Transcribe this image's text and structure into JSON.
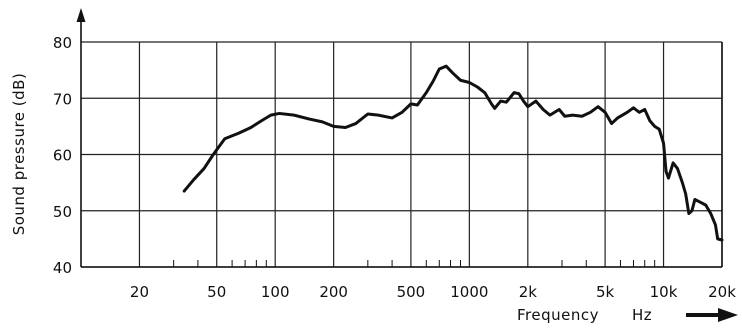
{
  "chart_data": {
    "type": "line",
    "title": "",
    "xlabel": "Frequency",
    "xunit": "Hz",
    "ylabel": "Sound pressure (dB)",
    "xscale": "log",
    "xlim": [
      10,
      20000
    ],
    "ylim": [
      40,
      80
    ],
    "xticks": [
      {
        "value": 20,
        "label": "20"
      },
      {
        "value": 50,
        "label": "50"
      },
      {
        "value": 100,
        "label": "100"
      },
      {
        "value": 200,
        "label": "200"
      },
      {
        "value": 500,
        "label": "500"
      },
      {
        "value": 1000,
        "label": "1000"
      },
      {
        "value": 2000,
        "label": "2k"
      },
      {
        "value": 5000,
        "label": "5k"
      },
      {
        "value": 10000,
        "label": "10k"
      },
      {
        "value": 20000,
        "label": "20k"
      }
    ],
    "yticks": [
      {
        "value": 40,
        "label": "40"
      },
      {
        "value": 50,
        "label": "50"
      },
      {
        "value": 60,
        "label": "60"
      },
      {
        "value": 70,
        "label": "70"
      },
      {
        "value": 80,
        "label": "80"
      }
    ],
    "grid": true,
    "series": [
      {
        "points": [
          [
            34,
            53.5
          ],
          [
            38,
            55.5
          ],
          [
            43,
            57.5
          ],
          [
            48,
            60
          ],
          [
            55,
            62.8
          ],
          [
            65,
            63.8
          ],
          [
            75,
            64.8
          ],
          [
            85,
            66
          ],
          [
            95,
            67
          ],
          [
            105,
            67.3
          ],
          [
            125,
            67
          ],
          [
            150,
            66.3
          ],
          [
            175,
            65.8
          ],
          [
            200,
            65
          ],
          [
            230,
            64.8
          ],
          [
            260,
            65.5
          ],
          [
            300,
            67.2
          ],
          [
            340,
            67
          ],
          [
            400,
            66.5
          ],
          [
            450,
            67.5
          ],
          [
            500,
            69
          ],
          [
            540,
            68.8
          ],
          [
            600,
            71
          ],
          [
            650,
            73
          ],
          [
            700,
            75.2
          ],
          [
            760,
            75.7
          ],
          [
            820,
            74.5
          ],
          [
            900,
            73.2
          ],
          [
            1000,
            72.8
          ],
          [
            1100,
            72
          ],
          [
            1200,
            71
          ],
          [
            1300,
            69
          ],
          [
            1350,
            68.2
          ],
          [
            1450,
            69.5
          ],
          [
            1550,
            69.3
          ],
          [
            1700,
            71
          ],
          [
            1800,
            70.8
          ],
          [
            1900,
            69.5
          ],
          [
            2000,
            68.5
          ],
          [
            2200,
            69.5
          ],
          [
            2400,
            68
          ],
          [
            2600,
            67
          ],
          [
            2900,
            68
          ],
          [
            3100,
            66.8
          ],
          [
            3400,
            67
          ],
          [
            3800,
            66.8
          ],
          [
            4200,
            67.5
          ],
          [
            4600,
            68.5
          ],
          [
            5000,
            67.5
          ],
          [
            5400,
            65.5
          ],
          [
            5800,
            66.5
          ],
          [
            6500,
            67.5
          ],
          [
            7000,
            68.3
          ],
          [
            7500,
            67.5
          ],
          [
            8000,
            68
          ],
          [
            8500,
            66
          ],
          [
            9000,
            65
          ],
          [
            9500,
            64.5
          ],
          [
            10000,
            62
          ],
          [
            10300,
            57
          ],
          [
            10600,
            55.8
          ],
          [
            11200,
            58.5
          ],
          [
            11800,
            57.5
          ],
          [
            12500,
            55
          ],
          [
            13000,
            53
          ],
          [
            13500,
            49.5
          ],
          [
            14000,
            50
          ],
          [
            14500,
            52
          ],
          [
            15500,
            51.5
          ],
          [
            16500,
            51
          ],
          [
            17500,
            49.5
          ],
          [
            18500,
            47.5
          ],
          [
            19000,
            45
          ],
          [
            20000,
            44.8
          ]
        ]
      }
    ]
  }
}
